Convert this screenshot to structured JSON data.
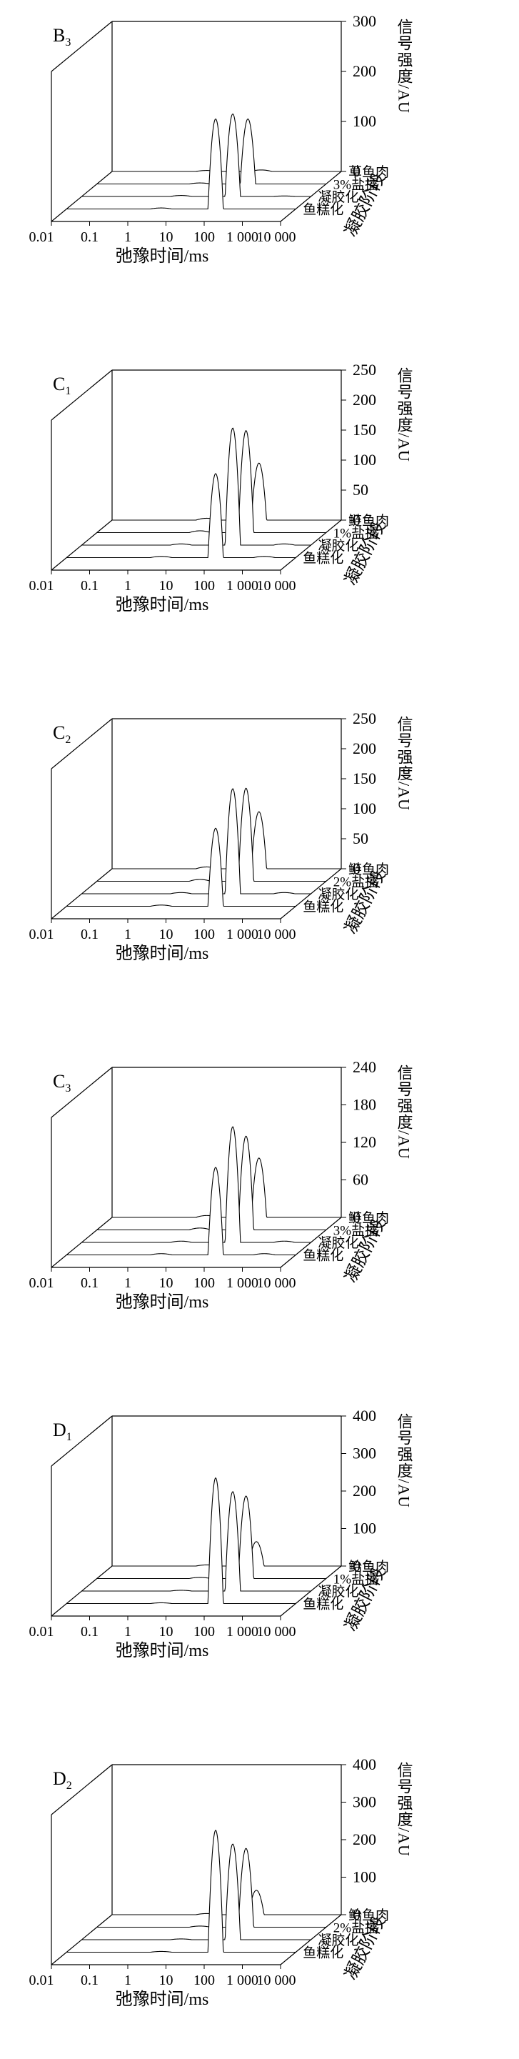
{
  "x_axis_label": "弛豫时间/ms",
  "y_axis_label": "信号强度/AU",
  "z_axis_label": "凝胶阶段",
  "x_tick_labels": [
    "0.01",
    "0.1",
    "1",
    "10",
    "100",
    "1 000",
    "10 000"
  ],
  "chart_data": [
    {
      "type": "line",
      "panel_label": "B",
      "panel_sub": "3",
      "y_ticks": [
        0,
        100,
        200,
        300
      ],
      "ylim": [
        0,
        300
      ],
      "xscale": "log",
      "x_range": [
        0.01,
        10000
      ],
      "series": [
        {
          "name": "草鱼肉",
          "peaks": [
            {
              "t2": 80,
              "amp": 3
            },
            {
              "t2": 3,
              "amp": 2
            }
          ]
        },
        {
          "name": "3%盐擂",
          "peaks": [
            {
              "t2": 90,
              "amp": 130
            },
            {
              "t2": 5,
              "amp": 2
            }
          ]
        },
        {
          "name": "凝胶化",
          "peaks": [
            {
              "t2": 90,
              "amp": 165
            },
            {
              "t2": 4,
              "amp": 2
            },
            {
              "t2": 2000,
              "amp": 1
            }
          ]
        },
        {
          "name": "鱼糕化",
          "peaks": [
            {
              "t2": 80,
              "amp": 180
            },
            {
              "t2": 3,
              "amp": 2
            }
          ]
        }
      ]
    },
    {
      "type": "line",
      "panel_label": "C",
      "panel_sub": "1",
      "y_ticks": [
        0,
        50,
        100,
        150,
        200,
        250
      ],
      "ylim": [
        0,
        250
      ],
      "xscale": "log",
      "x_range": [
        0.01,
        10000
      ],
      "series": [
        {
          "name": "鲢鱼肉",
          "peaks": [
            {
              "t2": 70,
              "amp": 95
            },
            {
              "t2": 3,
              "amp": 3
            }
          ]
        },
        {
          "name": "1%盐擂",
          "peaks": [
            {
              "t2": 80,
              "amp": 170
            },
            {
              "t2": 5,
              "amp": 3
            }
          ]
        },
        {
          "name": "凝胶化",
          "peaks": [
            {
              "t2": 90,
              "amp": 195
            },
            {
              "t2": 4,
              "amp": 2
            },
            {
              "t2": 2000,
              "amp": 2
            }
          ]
        },
        {
          "name": "鱼糕化",
          "peaks": [
            {
              "t2": 80,
              "amp": 140
            },
            {
              "t2": 3,
              "amp": 2
            },
            {
              "t2": 1500,
              "amp": 2
            }
          ]
        }
      ]
    },
    {
      "type": "line",
      "panel_label": "C",
      "panel_sub": "2",
      "y_ticks": [
        0,
        50,
        100,
        150,
        200,
        250
      ],
      "ylim": [
        0,
        250
      ],
      "xscale": "log",
      "x_range": [
        0.01,
        10000
      ],
      "series": [
        {
          "name": "鲢鱼肉",
          "peaks": [
            {
              "t2": 70,
              "amp": 95
            },
            {
              "t2": 3,
              "amp": 3
            }
          ]
        },
        {
          "name": "2%盐擂",
          "peaks": [
            {
              "t2": 80,
              "amp": 155
            },
            {
              "t2": 5,
              "amp": 3
            }
          ]
        },
        {
          "name": "凝胶化",
          "peaks": [
            {
              "t2": 90,
              "amp": 175
            },
            {
              "t2": 4,
              "amp": 2
            },
            {
              "t2": 2000,
              "amp": 2
            }
          ]
        },
        {
          "name": "鱼糕化",
          "peaks": [
            {
              "t2": 80,
              "amp": 130
            },
            {
              "t2": 3,
              "amp": 2
            }
          ]
        }
      ]
    },
    {
      "type": "line",
      "panel_label": "C",
      "panel_sub": "3",
      "y_ticks": [
        0,
        60,
        120,
        180,
        240
      ],
      "ylim": [
        0,
        240
      ],
      "xscale": "log",
      "x_range": [
        0.01,
        10000
      ],
      "series": [
        {
          "name": "鲢鱼肉",
          "peaks": [
            {
              "t2": 70,
              "amp": 95
            },
            {
              "t2": 3,
              "amp": 3
            }
          ]
        },
        {
          "name": "3%盐擂",
          "peaks": [
            {
              "t2": 80,
              "amp": 150
            },
            {
              "t2": 5,
              "amp": 3
            }
          ]
        },
        {
          "name": "凝胶化",
          "peaks": [
            {
              "t2": 90,
              "amp": 185
            },
            {
              "t2": 4,
              "amp": 2
            },
            {
              "t2": 2000,
              "amp": 2
            }
          ]
        },
        {
          "name": "鱼糕化",
          "peaks": [
            {
              "t2": 80,
              "amp": 140
            },
            {
              "t2": 3,
              "amp": 2
            },
            {
              "t2": 1500,
              "amp": 2
            }
          ]
        }
      ]
    },
    {
      "type": "line",
      "panel_label": "D",
      "panel_sub": "1",
      "y_ticks": [
        0,
        100,
        200,
        300,
        400
      ],
      "ylim": [
        0,
        400
      ],
      "xscale": "log",
      "x_range": [
        0.01,
        10000
      ],
      "series": [
        {
          "name": "鲐鱼肉",
          "peaks": [
            {
              "t2": 60,
              "amp": 65
            },
            {
              "t2": 3,
              "amp": 3
            }
          ]
        },
        {
          "name": "1%盐擂",
          "peaks": [
            {
              "t2": 80,
              "amp": 220
            },
            {
              "t2": 5,
              "amp": 3
            }
          ]
        },
        {
          "name": "凝胶化",
          "peaks": [
            {
              "t2": 90,
              "amp": 265
            },
            {
              "t2": 4,
              "amp": 2
            }
          ]
        },
        {
          "name": "鱼糕化",
          "peaks": [
            {
              "t2": 80,
              "amp": 335
            },
            {
              "t2": 3,
              "amp": 2
            }
          ]
        }
      ]
    },
    {
      "type": "line",
      "panel_label": "D",
      "panel_sub": "2",
      "y_ticks": [
        0,
        100,
        200,
        300,
        400
      ],
      "ylim": [
        0,
        400
      ],
      "xscale": "log",
      "x_range": [
        0.01,
        10000
      ],
      "series": [
        {
          "name": "鲐鱼肉",
          "peaks": [
            {
              "t2": 60,
              "amp": 65
            },
            {
              "t2": 3,
              "amp": 3
            }
          ]
        },
        {
          "name": "2%盐擂",
          "peaks": [
            {
              "t2": 80,
              "amp": 210
            },
            {
              "t2": 5,
              "amp": 3
            }
          ]
        },
        {
          "name": "凝胶化",
          "peaks": [
            {
              "t2": 90,
              "amp": 255
            },
            {
              "t2": 4,
              "amp": 2
            }
          ]
        },
        {
          "name": "鱼糕化",
          "peaks": [
            {
              "t2": 80,
              "amp": 325
            },
            {
              "t2": 3,
              "amp": 2
            }
          ]
        }
      ]
    }
  ]
}
